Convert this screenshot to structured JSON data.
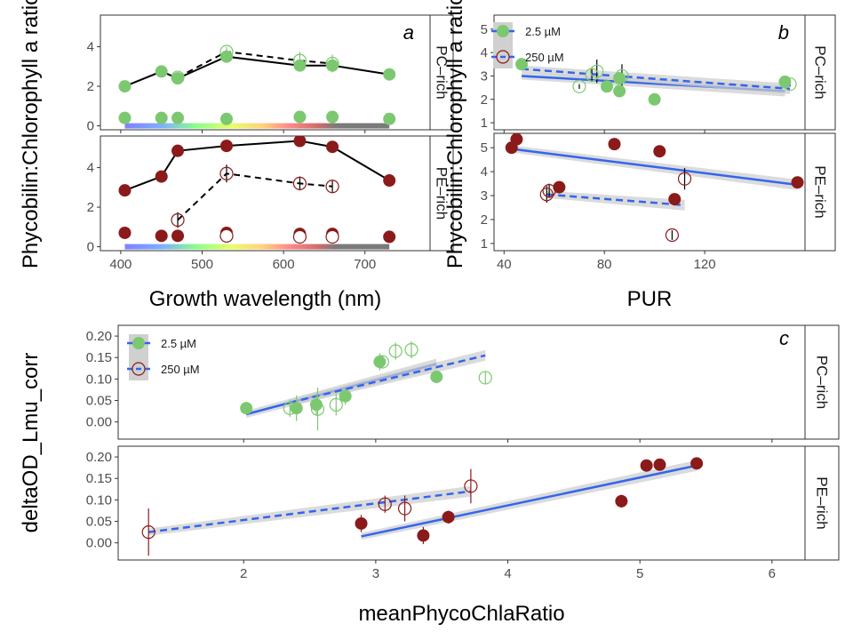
{
  "colors": {
    "pc_fill": "#7cc870",
    "pe_fill": "#8b1a1a",
    "fit_line": "#3366ee",
    "ribbon": "#cccccc",
    "panel_border": "#333333",
    "spectrum_gray": "#7a7a7a"
  },
  "strips": {
    "pc": "PC–rich",
    "pe": "PE–rich"
  },
  "legend": {
    "low": "2.5 µM",
    "high": "250 µM"
  },
  "chart_data": [
    {
      "id": "a",
      "type": "line",
      "panel_label": "a",
      "xlabel": "Growth wavelength (nm)",
      "ylabel": "Phycobilin:Chlorophyll a ratio (",
      "xlim": [
        375,
        780
      ],
      "xticks": [
        400,
        500,
        600,
        700
      ],
      "ylim": [
        -0.2,
        5.6
      ],
      "yticks": [
        0,
        2,
        4
      ],
      "facets": [
        {
          "strip": "PC–rich",
          "low_line": {
            "x": [
              405,
              450,
              470,
              530,
              620,
              660,
              730
            ],
            "y": [
              2.0,
              2.75,
              2.4,
              3.5,
              3.05,
              3.05,
              2.6
            ]
          },
          "low_base": {
            "x": [
              405,
              450,
              470,
              530,
              620,
              660,
              730
            ],
            "y": [
              0.4,
              0.4,
              0.4,
              0.35,
              0.45,
              0.45,
              0.35
            ]
          },
          "high_line": {
            "x": [
              470,
              530,
              620,
              660
            ],
            "y": [
              2.45,
              3.75,
              3.3,
              3.15
            ],
            "err": [
              0.1,
              0.25,
              0.45,
              0.45
            ]
          },
          "spectrum": [
            405,
            730
          ]
        },
        {
          "strip": "PE–rich",
          "low_line": {
            "x": [
              405,
              450,
              470,
              530,
              620,
              660,
              730
            ],
            "y": [
              2.85,
              3.55,
              4.85,
              5.1,
              5.35,
              5.05,
              3.35
            ]
          },
          "low_base": {
            "x": [
              405,
              450,
              470,
              530,
              620,
              660,
              730
            ],
            "y": [
              0.7,
              0.55,
              0.55,
              0.7,
              0.65,
              0.65,
              0.5
            ]
          },
          "high_line": {
            "x": [
              470,
              530,
              620,
              660
            ],
            "y": [
              1.35,
              3.7,
              3.2,
              3.05
            ],
            "err": [
              0.4,
              0.45,
              0.35,
              0.3
            ]
          },
          "high_base": {
            "x": [
              530,
              620,
              660
            ],
            "y": [
              0.55,
              0.5,
              0.5
            ]
          },
          "spectrum": [
            405,
            730
          ]
        }
      ]
    },
    {
      "id": "b",
      "type": "scatter",
      "panel_label": "b",
      "xlabel": "PUR",
      "ylabel": "Phycobilin:Chlorophyll a ratio (",
      "xlim": [
        36,
        160
      ],
      "xticks": [
        40,
        80,
        120
      ],
      "ylim": [
        0.7,
        5.6
      ],
      "yticks": [
        1,
        2,
        3,
        4,
        5
      ],
      "facets": [
        {
          "strip": "PC–rich",
          "low": {
            "x": [
              47,
              81,
              86,
              86,
              100,
              152
            ],
            "y": [
              3.5,
              2.55,
              2.9,
              2.35,
              2.0,
              2.75
            ]
          },
          "high": {
            "x": [
              70,
              75,
              77,
              87,
              154
            ],
            "y": [
              2.55,
              3.05,
              3.2,
              3.0,
              2.65
            ],
            "err": [
              0.1,
              0.3,
              0.5,
              0.5,
              0.1
            ]
          },
          "low_fit": [
            [
              47,
              3.0
            ],
            [
              152,
              2.35
            ]
          ],
          "high_fit": [
            [
              47,
              3.3
            ],
            [
              154,
              2.45
            ]
          ]
        },
        {
          "strip": "PE–rich",
          "low": {
            "x": [
              43,
              45,
              62,
              84,
              102,
              108,
              157
            ],
            "y": [
              5.0,
              5.35,
              3.35,
              5.15,
              4.85,
              2.85,
              3.55
            ]
          },
          "high": {
            "x": [
              57,
              58,
              107,
              112
            ],
            "y": [
              3.05,
              3.2,
              1.35,
              3.7
            ],
            "err": [
              0.35,
              0.3,
              0.2,
              0.45
            ]
          },
          "low_fit": [
            [
              43,
              4.95
            ],
            [
              157,
              3.45
            ]
          ],
          "high_fit": [
            [
              57,
              3.05
            ],
            [
              112,
              2.6
            ]
          ]
        }
      ]
    },
    {
      "id": "c",
      "type": "scatter",
      "panel_label": "c",
      "xlabel": "meanPhycoChlaRatio",
      "ylabel": "deltaOD_Lmu_corr",
      "xlim": [
        1.05,
        6.25
      ],
      "xticks": [
        2,
        3,
        4,
        5,
        6
      ],
      "ylim": [
        -0.04,
        0.225
      ],
      "yticks": [
        0.0,
        0.05,
        0.1,
        0.15,
        0.2
      ],
      "ytick_labels": [
        "0.00",
        "0.05",
        "0.10",
        "0.15",
        "0.20"
      ],
      "facets": [
        {
          "strip": "PC–rich",
          "low": {
            "x": [
              2.02,
              2.4,
              2.55,
              2.77,
              3.03,
              3.46
            ],
            "y": [
              0.032,
              0.032,
              0.04,
              0.06,
              0.14,
              0.105
            ],
            "err": [
              0.015,
              0.03,
              0.025,
              0.02,
              0.02,
              0.015
            ]
          },
          "high": {
            "x": [
              2.35,
              2.56,
              2.7,
              3.05,
              3.15,
              3.27,
              3.83
            ],
            "y": [
              0.032,
              0.03,
              0.04,
              0.14,
              0.165,
              0.168,
              0.103
            ],
            "err": [
              0.02,
              0.05,
              0.025,
              0.015,
              0.02,
              0.02,
              0.015
            ]
          },
          "low_fit": [
            [
              2.02,
              0.018
            ],
            [
              3.46,
              0.135
            ]
          ],
          "high_fit": [
            [
              2.35,
              0.045
            ],
            [
              3.83,
              0.155
            ]
          ]
        },
        {
          "strip": "PE–rich",
          "low": {
            "x": [
              2.89,
              3.36,
              3.55,
              4.86,
              5.05,
              5.15,
              5.43
            ],
            "y": [
              0.045,
              0.017,
              0.06,
              0.097,
              0.18,
              0.182,
              0.185
            ],
            "err": [
              0.02,
              0.02,
              0.015,
              0.015,
              0.01,
              0.01,
              0.01
            ]
          },
          "high": {
            "x": [
              1.28,
              3.07,
              3.22,
              3.72
            ],
            "y": [
              0.025,
              0.09,
              0.08,
              0.132
            ],
            "err": [
              0.055,
              0.02,
              0.03,
              0.04
            ]
          },
          "low_fit": [
            [
              2.89,
              0.015
            ],
            [
              5.43,
              0.18
            ]
          ],
          "high_fit": [
            [
              1.28,
              0.025
            ],
            [
              3.72,
              0.12
            ]
          ]
        }
      ]
    }
  ]
}
